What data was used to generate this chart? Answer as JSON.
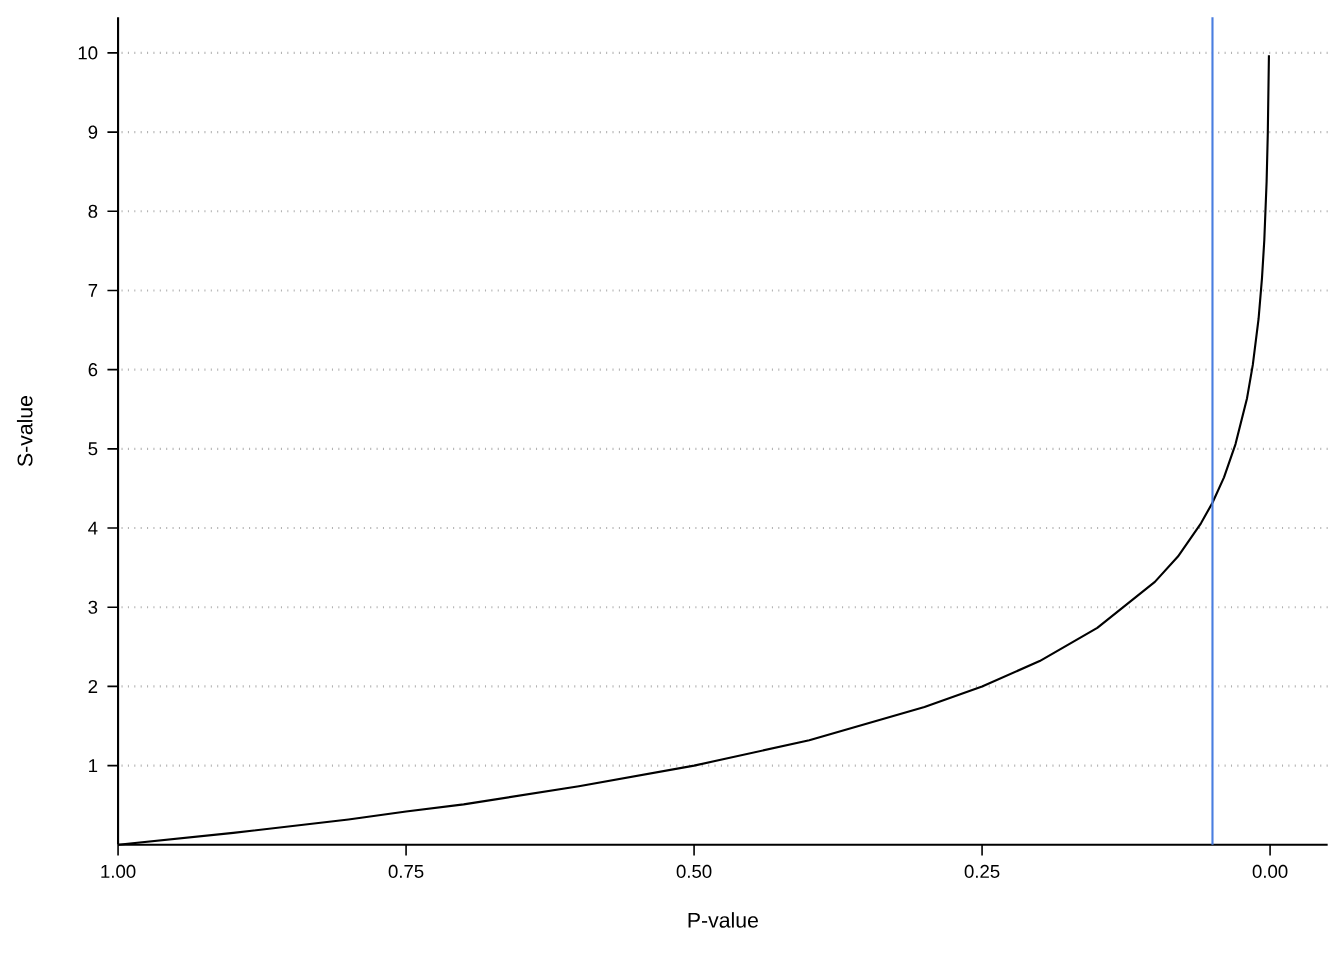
{
  "chart_data": {
    "type": "line",
    "xlabel": "P-value",
    "ylabel": "S-value",
    "x": [
      1.0,
      0.9,
      0.8,
      0.75,
      0.7,
      0.6,
      0.5,
      0.4,
      0.3,
      0.25,
      0.2,
      0.15,
      0.1,
      0.08,
      0.06,
      0.05,
      0.04,
      0.03,
      0.02,
      0.015,
      0.01,
      0.007,
      0.005,
      0.003,
      0.002,
      0.001
    ],
    "series": [
      {
        "color": "#000000",
        "values": [
          0,
          0.15,
          0.32,
          0.42,
          0.51,
          0.74,
          1.0,
          1.32,
          1.74,
          2.0,
          2.32,
          2.74,
          3.32,
          3.64,
          4.06,
          4.32,
          4.64,
          5.06,
          5.64,
          6.06,
          6.64,
          7.16,
          7.64,
          8.38,
          8.97,
          9.97
        ]
      }
    ],
    "xlim": [
      1.0,
      -0.05
    ],
    "ylim": [
      0,
      10.45
    ],
    "xticks": [
      {
        "value": 1.0,
        "label": "1.00"
      },
      {
        "value": 0.75,
        "label": "0.75"
      },
      {
        "value": 0.5,
        "label": "0.50"
      },
      {
        "value": 0.25,
        "label": "0.25"
      },
      {
        "value": 0.0,
        "label": "0.00"
      }
    ],
    "yticks": [
      1,
      2,
      3,
      4,
      5,
      6,
      7,
      8,
      9,
      10
    ],
    "grid": "y",
    "marker": "none",
    "line_style": "solid",
    "ref_lines": [
      {
        "axis": "x",
        "value": 0.05,
        "color": "#4a7ee0"
      }
    ]
  }
}
